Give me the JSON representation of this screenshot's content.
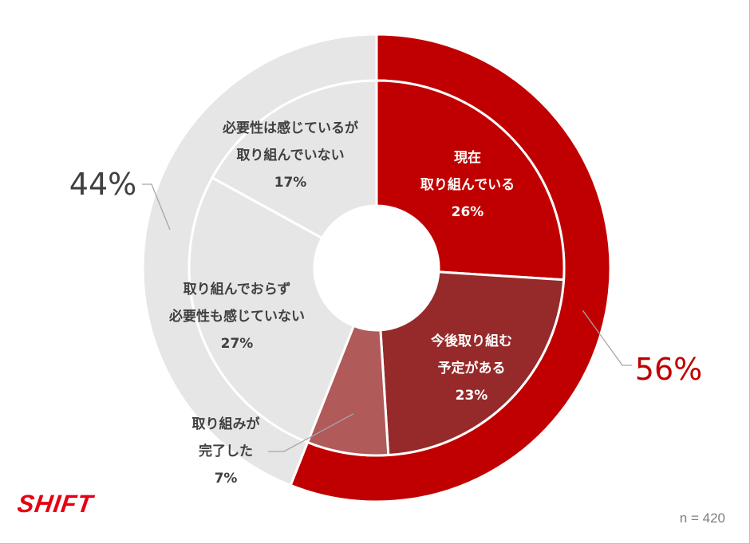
{
  "brand": {
    "logo_text": "SHIFT"
  },
  "sample_size": "n = 420",
  "colors": {
    "outer_red": "#c00000",
    "outer_gray": "#e7e6e6",
    "now": "#c00000",
    "planned": "#962a2a",
    "completed": "#b05a5a",
    "not_doing_aware": "#e7e6e6",
    "not_doing_unaware": "#e7e6e6",
    "divider": "#ffffff",
    "dark_text": "#404040",
    "red_text": "#c00000",
    "leader": "#a6a6a6"
  },
  "chart_data": [
    {
      "type": "pie",
      "ring": "outer",
      "title": "",
      "slices": [
        {
          "name": "",
          "value": 56,
          "display": "56%",
          "color": "#c00000"
        },
        {
          "name": "",
          "value": 44,
          "display": "44%",
          "color": "#e7e6e6"
        }
      ]
    },
    {
      "type": "pie",
      "ring": "inner",
      "title": "",
      "slices": [
        {
          "label_lines": [
            "現在",
            "取り組んでいる"
          ],
          "value": 26,
          "display": "26%",
          "color": "#c00000"
        },
        {
          "label_lines": [
            "今後取り組む",
            "予定がある"
          ],
          "value": 23,
          "display": "23%",
          "color": "#962a2a"
        },
        {
          "label_lines": [
            "取り組みが",
            "完了した"
          ],
          "value": 7,
          "display": "7%",
          "color": "#b05a5a"
        },
        {
          "label_lines": [
            "取り組んでおらず",
            "必要性も感じていない"
          ],
          "value": 27,
          "display": "27%",
          "color": "#e7e6e6"
        },
        {
          "label_lines": [
            "必要性は感じているが",
            "取り組んでいない"
          ],
          "value": 17,
          "display": "17%",
          "color": "#e7e6e6"
        }
      ]
    }
  ]
}
